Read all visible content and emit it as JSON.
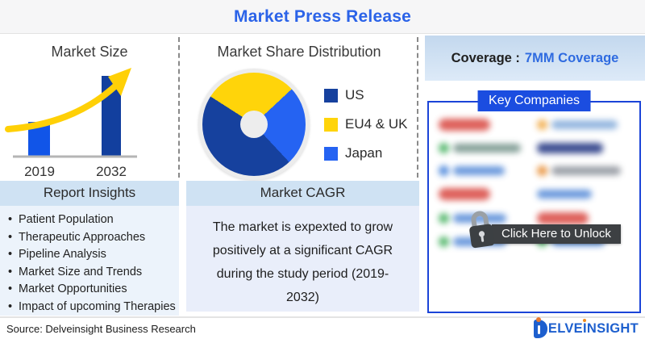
{
  "header": {
    "title": "Market Press Release"
  },
  "market_size": {
    "title": "Market Size",
    "years": [
      "2019",
      "2032"
    ]
  },
  "market_share": {
    "title": "Market Share Distribution",
    "legend": [
      {
        "label": "US"
      },
      {
        "label": "EU4 & UK"
      },
      {
        "label": "Japan"
      }
    ]
  },
  "coverage": {
    "label": "Coverage :",
    "value": "7MM Coverage"
  },
  "key_companies": {
    "title": "Key Companies",
    "unlock_label": "Click Here to Unlock"
  },
  "report_insights": {
    "title": "Report Insights",
    "items": [
      "Patient Population",
      "Therapeutic Approaches",
      "Pipeline Analysis",
      "Market Size and Trends",
      "Market Opportunities",
      "Impact of upcoming Therapies"
    ]
  },
  "market_cagr": {
    "title": "Market CAGR",
    "text": "The market is expexted to grow positively at a significant CAGR during the study period (2019-2032)"
  },
  "footer": {
    "source": "Source: Delveinsight Business Research",
    "brand_parts": [
      "ELVE",
      "I",
      "NSIGHT"
    ]
  },
  "colors": {
    "accent_blue": "#2b63e8",
    "bar_2019": "#1155e8",
    "bar_2032": "#123f9e",
    "arrow_yellow": "#ffd006",
    "pie_us": "#16419e",
    "pie_eu4_uk": "#ffd40a",
    "pie_japan": "#2563f2",
    "coverage_value_blue": "#2f6be0",
    "key_companies_blue": "#1b4de0",
    "band_light_blue": "#cfe2f3",
    "unlock_dark": "#3d4043"
  },
  "chart_data": [
    {
      "type": "bar",
      "title": "Market Size",
      "categories": [
        "2019",
        "2032"
      ],
      "values": [
        42,
        99
      ],
      "ylabel": "",
      "axis_values_shown": false,
      "annotation": "yellow upward growth arrow"
    },
    {
      "type": "pie",
      "title": "Market Share Distribution",
      "labels": [
        "US",
        "EU4 & UK",
        "Japan"
      ],
      "values": [
        46,
        29,
        25
      ],
      "unit": "percent (estimated from slice angles)",
      "colors": [
        "#16419e",
        "#ffd40a",
        "#2563f2"
      ],
      "start_angle_deg": 47,
      "draw_order": [
        2,
        0,
        1
      ],
      "donut": true,
      "legend_position": "right"
    }
  ]
}
